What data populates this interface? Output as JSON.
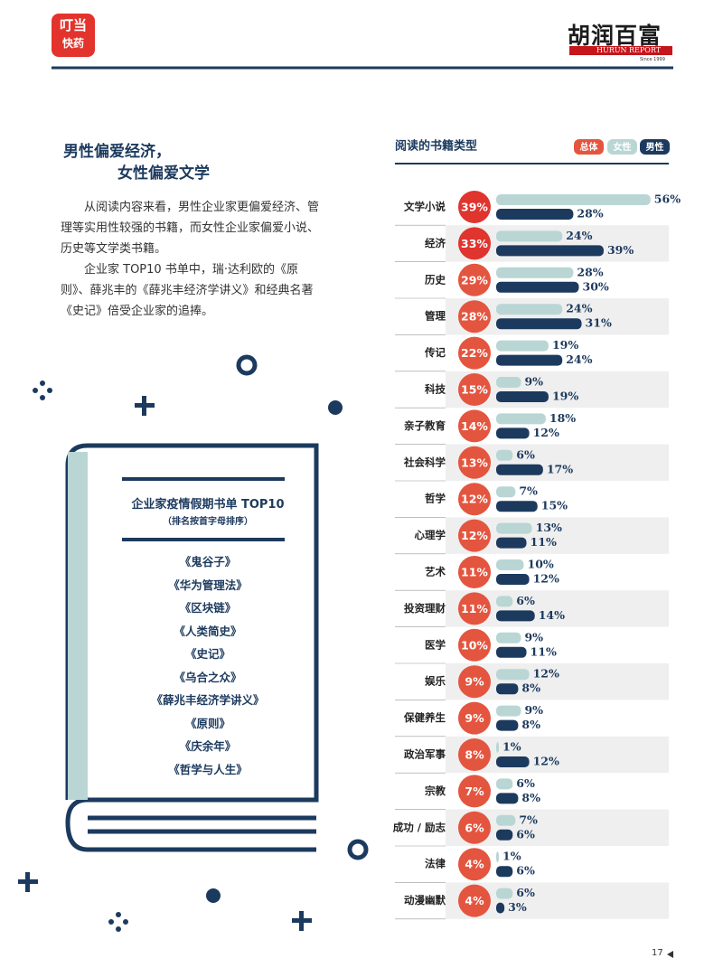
{
  "header": {
    "left_logo": [
      "叮当",
      "快药"
    ],
    "right_logo": {
      "name": "胡润百富",
      "sub": "HURUN REPORT",
      "since": "Since 1999"
    }
  },
  "heading": [
    "男性偏爱经济，",
    "女性偏爱文学"
  ],
  "paragraphs": [
    "从阅读内容来看，男性企业家更偏爱经济、管理等实用性较强的书籍，而女性企业家偏爱小说、历史等文学类书籍。",
    "企业家 TOP10 书单中，瑞·达利欧的《原则》、薛兆丰的《薛兆丰经济学讲义》和经典名著《史记》倍受企业家的追捧。"
  ],
  "booklist": {
    "title": "企业家疫情假期书单 TOP10",
    "subtitle": "（排名按首字母排序）",
    "items": [
      "《鬼谷子》",
      "《华为管理法》",
      "《区块链》",
      "《人类简史》",
      "《史记》",
      "《乌合之众》",
      "《薛兆丰经济学讲义》",
      "《原则》",
      "《庆余年》",
      "《哲学与人生》"
    ]
  },
  "chart_data": {
    "type": "bar",
    "orientation": "horizontal",
    "title": "阅读的书籍类型",
    "categories": [
      "文学小说",
      "经济",
      "历史",
      "管理",
      "传记",
      "科技",
      "亲子教育",
      "社会科学",
      "哲学",
      "心理学",
      "艺术",
      "投资理财",
      "医学",
      "娱乐",
      "保健养生",
      "政治军事",
      "宗教",
      "成功 / 励志",
      "法律",
      "动漫幽默"
    ],
    "series": [
      {
        "name": "总体",
        "color": "#e4553f",
        "values": [
          39,
          33,
          29,
          28,
          22,
          15,
          14,
          13,
          12,
          12,
          11,
          11,
          10,
          9,
          9,
          8,
          7,
          6,
          4,
          4
        ],
        "value_labels": [
          "39%",
          "33%",
          "29%",
          "28%",
          "22%",
          "15%",
          "14%",
          "13%",
          "12%",
          "12%",
          "11%",
          "11%",
          "10%",
          "9%",
          "9%",
          "8%",
          "7%",
          "6%",
          "4%",
          "4%"
        ]
      },
      {
        "name": "女性",
        "color": "#b9d6d5",
        "values": [
          56,
          24,
          28,
          24,
          19,
          9,
          18,
          6,
          7,
          13,
          10,
          6,
          9,
          12,
          9,
          1,
          6,
          7,
          1,
          6
        ],
        "value_labels": [
          "56%",
          "24%",
          "28%",
          "24%",
          "19%",
          "9%",
          "18%",
          "6%",
          "7%",
          "13%",
          "10%",
          "6%",
          "9%",
          "12%",
          "9%",
          "1%",
          "6%",
          "7%",
          "1%",
          "6%"
        ]
      },
      {
        "name": "男性",
        "color": "#1c3a5e",
        "values": [
          28,
          39,
          30,
          31,
          24,
          19,
          12,
          17,
          15,
          11,
          12,
          14,
          11,
          8,
          8,
          12,
          8,
          6,
          6,
          3
        ],
        "value_labels": [
          "28%",
          "39%",
          "30%",
          "31%",
          "24%",
          "19%",
          "12%",
          "17%",
          "15%",
          "11%",
          "12%",
          "14%",
          "11%",
          "8%",
          "8%",
          "12%",
          "8%",
          "6%",
          "6%",
          "3%"
        ]
      }
    ]
  },
  "page_number": "17"
}
